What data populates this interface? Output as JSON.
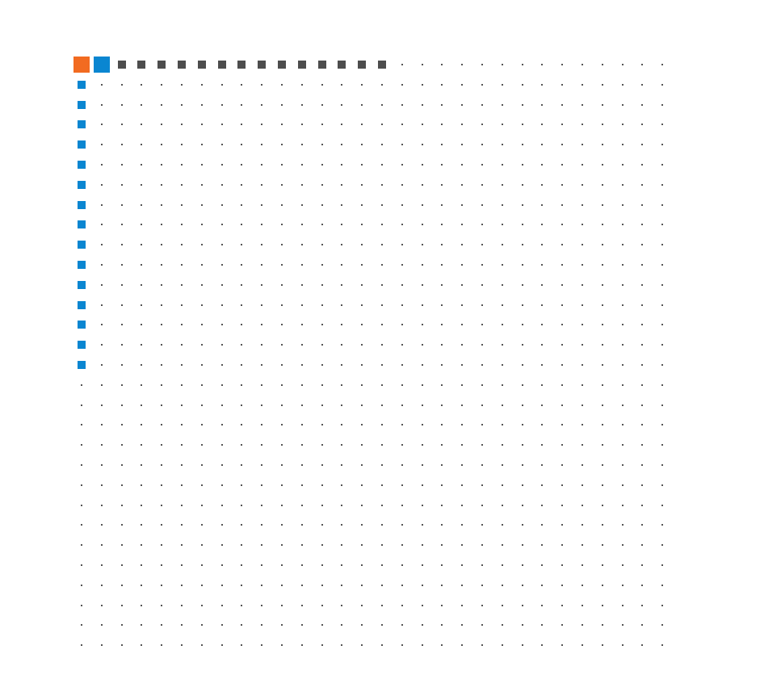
{
  "board": {
    "columns": 30,
    "rows": 30,
    "dot_color": "#555555",
    "empty": "dot"
  },
  "colors": {
    "orange": "#f26b21",
    "blue": "#0a86d1",
    "gray": "#4d4d4d"
  },
  "pieces": {
    "origin": {
      "col": 0,
      "row": 0,
      "color": "orange",
      "kind": "large-square"
    },
    "head": {
      "col": 1,
      "row": 0,
      "color": "blue",
      "kind": "large-square"
    },
    "horizontal_segments": {
      "row": 0,
      "cols": [
        2,
        3,
        4,
        5,
        6,
        7,
        8,
        9,
        10,
        11,
        12,
        13,
        14,
        15
      ],
      "color": "gray",
      "kind": "small-square"
    },
    "vertical_segments": {
      "col": 0,
      "rows": [
        1,
        2,
        3,
        4,
        5,
        6,
        7,
        8,
        9,
        10,
        11,
        12,
        13,
        14,
        15
      ],
      "color": "blue",
      "kind": "small-square"
    }
  }
}
